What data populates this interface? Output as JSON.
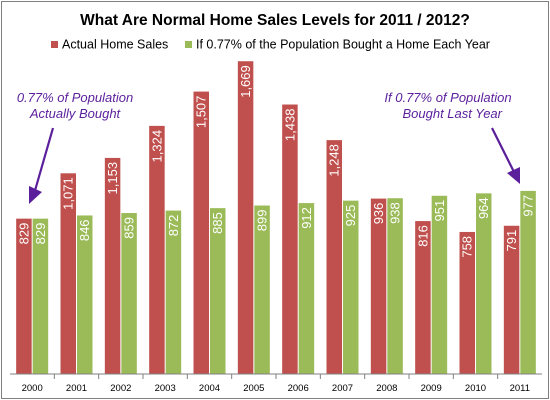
{
  "chart_data": {
    "type": "bar",
    "title": "What Are Normal Home Sales Levels for 2011 / 2012?",
    "categories": [
      "2000",
      "2001",
      "2002",
      "2003",
      "2004",
      "2005",
      "2006",
      "2007",
      "2008",
      "2009",
      "2010",
      "2011"
    ],
    "series": [
      {
        "name": "Actual Home Sales",
        "color": "#c0504d",
        "values": [
          829,
          1071,
          1153,
          1324,
          1507,
          1669,
          1438,
          1248,
          936,
          816,
          758,
          791
        ],
        "labels": [
          "829",
          "1,071",
          "1,153",
          "1,324",
          "1,507",
          "1,669",
          "1,438",
          "1,248",
          "936",
          "816",
          "758",
          "791"
        ]
      },
      {
        "name": "If 0.77% of the Population Bought a Home Each Year",
        "color": "#9bbb59",
        "values": [
          829,
          846,
          859,
          872,
          885,
          899,
          912,
          925,
          938,
          951,
          964,
          977
        ],
        "labels": [
          "829",
          "846",
          "859",
          "872",
          "885",
          "899",
          "912",
          "925",
          "938",
          "951",
          "964",
          "977"
        ]
      }
    ],
    "ylim": [
      0,
      1800
    ],
    "legend_position": "top",
    "grid": false,
    "annotations": [
      {
        "id": "left",
        "lines": [
          "0.77% of Population",
          "Actually Bought"
        ],
        "color": "#5b1f9c"
      },
      {
        "id": "right",
        "lines": [
          "If 0.77% of Population",
          "Bought Last Year"
        ],
        "color": "#5b1f9c"
      }
    ]
  }
}
